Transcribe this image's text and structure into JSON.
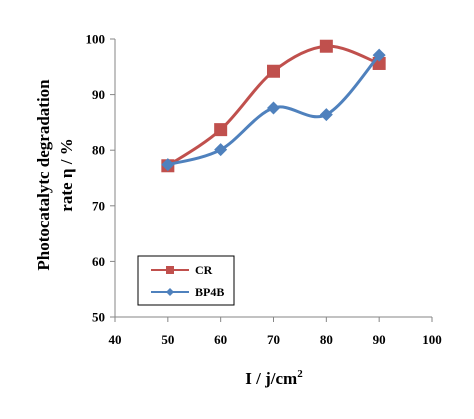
{
  "chart_data": {
    "type": "line",
    "smooth": true,
    "title": "",
    "xlabel": "I / j/cm",
    "xlabel_superscript": "2",
    "ylabel_line1": "Photocatalytc degradation",
    "ylabel_line2": "rate η  /  %",
    "xlim": [
      40,
      100
    ],
    "ylim": [
      50,
      100
    ],
    "xticks": [
      "40",
      "50",
      "60",
      "70",
      "80",
      "90",
      "100"
    ],
    "yticks": [
      "50",
      "60",
      "70",
      "80",
      "90",
      "100"
    ],
    "grid": false,
    "legend_position": "bottom-left",
    "x": [
      50,
      60,
      70,
      80,
      90
    ],
    "series": [
      {
        "name": "CR",
        "marker": "square",
        "color": "#c0504d",
        "values": [
          77.2,
          83.7,
          94.2,
          98.7,
          95.6
        ]
      },
      {
        "name": "BP4B",
        "marker": "diamond",
        "color": "#4f81bd",
        "values": [
          77.4,
          80.1,
          87.6,
          86.4,
          97.1
        ]
      }
    ]
  }
}
